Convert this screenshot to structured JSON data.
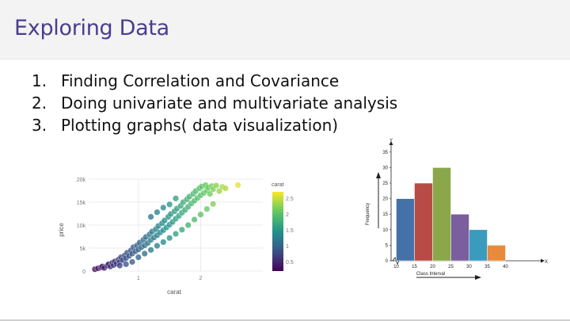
{
  "slide": {
    "title": "Exploring Data",
    "bullets": [
      {
        "num": "1.",
        "text": "Finding Correlation and Covariance"
      },
      {
        "num": "2.",
        "text": "Doing univariate and multivariate analysis"
      },
      {
        "num": "3.",
        "text": "Plotting graphs( data visualization)"
      }
    ]
  },
  "chart_data": [
    {
      "type": "scatter",
      "xlabel": "carat",
      "ylabel": "price",
      "x_ticks": [
        "1",
        "2"
      ],
      "y_ticks": [
        "0",
        "5k",
        "10k",
        "15k",
        "20k"
      ],
      "xlim": [
        0.2,
        3.0
      ],
      "ylim": [
        0,
        20000
      ],
      "colorbar": {
        "title": "carat",
        "ticks": [
          "0.5",
          "1",
          "1.5",
          "2",
          "2.5"
        ],
        "range": [
          0.2,
          2.7
        ],
        "colormap": "viridis"
      },
      "grid": true,
      "series": [
        {
          "points": [
            [
              0.3,
              400
            ],
            [
              0.35,
              600
            ],
            [
              0.4,
              800
            ],
            [
              0.42,
              1000
            ],
            [
              0.45,
              700
            ],
            [
              0.5,
              1200
            ],
            [
              0.52,
              1500
            ],
            [
              0.55,
              1000
            ],
            [
              0.58,
              1800
            ],
            [
              0.6,
              1300
            ],
            [
              0.62,
              2100
            ],
            [
              0.65,
              1600
            ],
            [
              0.68,
              2500
            ],
            [
              0.7,
              2000
            ],
            [
              0.72,
              3000
            ],
            [
              0.75,
              2400
            ],
            [
              0.78,
              3400
            ],
            [
              0.8,
              2800
            ],
            [
              0.82,
              4000
            ],
            [
              0.85,
              3300
            ],
            [
              0.88,
              4500
            ],
            [
              0.9,
              3800
            ],
            [
              0.92,
              5200
            ],
            [
              0.95,
              4300
            ],
            [
              0.98,
              5600
            ],
            [
              1.0,
              4700
            ],
            [
              1.02,
              6200
            ],
            [
              1.05,
              5200
            ],
            [
              1.08,
              6800
            ],
            [
              1.1,
              5600
            ],
            [
              1.12,
              7400
            ],
            [
              1.15,
              6100
            ],
            [
              1.18,
              8000
            ],
            [
              1.2,
              6800
            ],
            [
              1.22,
              8600
            ],
            [
              1.25,
              7300
            ],
            [
              1.28,
              9100
            ],
            [
              1.3,
              7800
            ],
            [
              1.32,
              9800
            ],
            [
              1.35,
              8400
            ],
            [
              1.38,
              10400
            ],
            [
              1.4,
              8900
            ],
            [
              1.42,
              11000
            ],
            [
              1.45,
              9500
            ],
            [
              1.48,
              11800
            ],
            [
              1.5,
              10100
            ],
            [
              1.52,
              12400
            ],
            [
              1.55,
              10700
            ],
            [
              1.58,
              13000
            ],
            [
              1.6,
              11400
            ],
            [
              1.62,
              13600
            ],
            [
              1.65,
              12000
            ],
            [
              1.68,
              14200
            ],
            [
              1.7,
              12700
            ],
            [
              1.72,
              15000
            ],
            [
              1.75,
              13300
            ],
            [
              1.78,
              15600
            ],
            [
              1.8,
              14000
            ],
            [
              1.82,
              16200
            ],
            [
              1.85,
              14700
            ],
            [
              1.88,
              16800
            ],
            [
              1.9,
              15300
            ],
            [
              1.92,
              17400
            ],
            [
              1.95,
              15900
            ],
            [
              1.98,
              18000
            ],
            [
              2.0,
              16500
            ],
            [
              2.02,
              18400
            ],
            [
              2.05,
              17000
            ],
            [
              2.08,
              18700
            ],
            [
              2.1,
              17500
            ],
            [
              2.12,
              18200
            ],
            [
              2.15,
              16800
            ],
            [
              2.18,
              18500
            ],
            [
              2.2,
              17800
            ],
            [
              2.25,
              18600
            ],
            [
              2.3,
              17400
            ],
            [
              2.35,
              18300
            ],
            [
              2.4,
              18000
            ],
            [
              2.6,
              18700
            ],
            [
              1.0,
              3000
            ],
            [
              1.1,
              3800
            ],
            [
              1.2,
              4600
            ],
            [
              1.3,
              5500
            ],
            [
              1.4,
              6300
            ],
            [
              1.5,
              7200
            ],
            [
              1.6,
              8100
            ],
            [
              1.7,
              9000
            ],
            [
              1.8,
              10000
            ],
            [
              1.9,
              11200
            ],
            [
              2.0,
              12300
            ],
            [
              2.1,
              13500
            ],
            [
              2.2,
              14600
            ],
            [
              0.7,
              1200
            ],
            [
              0.8,
              1500
            ],
            [
              0.9,
              2000
            ],
            [
              1.5,
              14500
            ],
            [
              1.6,
              15800
            ],
            [
              1.3,
              12800
            ],
            [
              1.4,
              13800
            ],
            [
              1.2,
              11800
            ]
          ]
        }
      ]
    },
    {
      "type": "bar",
      "xlabel": "Class Interval",
      "ylabel": "Frequency",
      "y_axis_label": "Y",
      "x_axis_label": "X",
      "x_ticks": [
        "10",
        "15",
        "20",
        "25",
        "30",
        "35",
        "40"
      ],
      "y_ticks": [
        "0",
        "5",
        "10",
        "15",
        "20",
        "25",
        "30",
        "35"
      ],
      "ylim": [
        0,
        37
      ],
      "bins": [
        [
          10,
          15
        ],
        [
          15,
          20
        ],
        [
          20,
          25
        ],
        [
          25,
          30
        ],
        [
          30,
          35
        ],
        [
          35,
          40
        ]
      ],
      "values": [
        20,
        25,
        30,
        15,
        10,
        5
      ],
      "colors": [
        "#4472a8",
        "#b84b45",
        "#8aa84a",
        "#7a5e9e",
        "#3a9bbe",
        "#e88a3c"
      ]
    }
  ]
}
